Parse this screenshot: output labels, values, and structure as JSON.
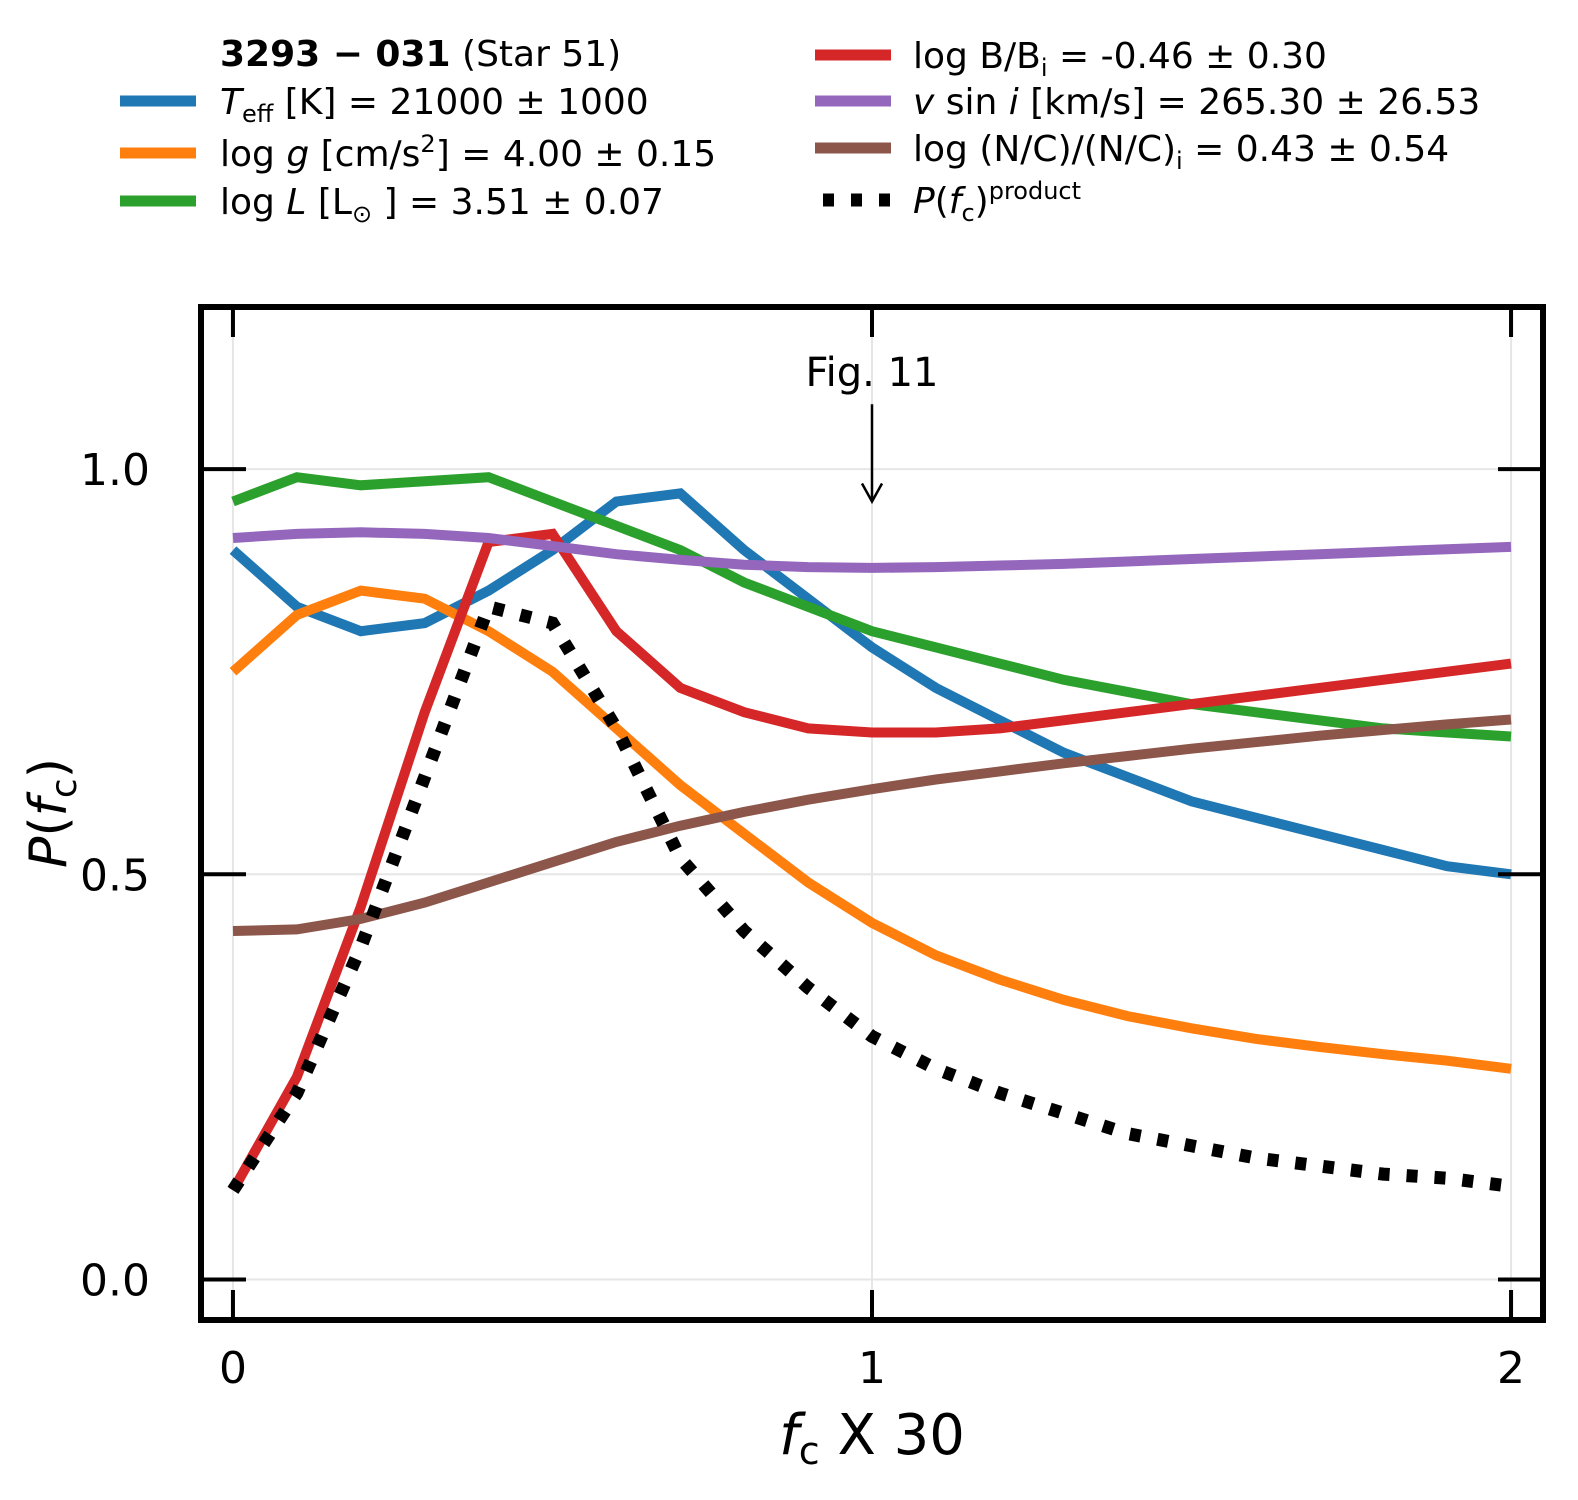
{
  "chart_data": {
    "type": "line",
    "legend": {
      "placement": "top",
      "title_bold": "3293 − 031",
      "title_rest": " (Star 51)",
      "entries": [
        {
          "id": "teff",
          "pre_it": "T",
          "sub": "eff",
          "mid": " [K] = ",
          "value": "21000 ± 1000"
        },
        {
          "id": "logg",
          "pre": "log ",
          "it": "g",
          "mid": " [cm/s",
          "sup": "2",
          "post": "] = ",
          "value": "4.00 ± 0.15"
        },
        {
          "id": "logl",
          "pre": "log ",
          "it": "L",
          "mid": " [L",
          "sub": "⊙",
          "post": " ] = ",
          "value": "3.51 ± 0.07"
        },
        {
          "id": "logb",
          "pre": "log B/B",
          "sub": "i",
          "post": " = ",
          "value": "-0.46 ± 0.30"
        },
        {
          "id": "vsini",
          "it": "v",
          "mid": " sin ",
          "it2": "i",
          "post": " [km/s] = ",
          "value": "265.30 ± 26.53"
        },
        {
          "id": "nc",
          "pre": "log (N/C)/(N/C)",
          "sub": "i",
          "post": " = ",
          "value": "0.43 ± 0.54"
        },
        {
          "id": "prod",
          "it": "P",
          "mid": "(",
          "it2": "f",
          "sub": "c",
          "post": ")",
          "sup": "product"
        }
      ]
    },
    "xlabel": {
      "italic": "f",
      "sub": "c",
      "rest": " X 30"
    },
    "ylabel": {
      "italic": "P",
      "mid": "(",
      "italic2": "f",
      "sub": "c",
      "post": ")"
    },
    "xlim": [
      -0.05,
      2.05
    ],
    "ylim": [
      -0.05,
      1.2
    ],
    "xticks": [
      {
        "v": 0,
        "label": "0"
      },
      {
        "v": 1,
        "label": "1"
      },
      {
        "v": 2,
        "label": "2"
      }
    ],
    "yticks": [
      {
        "v": 0,
        "label": "0.0"
      },
      {
        "v": 0.5,
        "label": "0.5"
      },
      {
        "v": 1,
        "label": "1.0"
      }
    ],
    "grid": true,
    "annotation": {
      "text": "Fig. 11",
      "x": 1.0,
      "text_y": 1.12,
      "arrow_top": 1.08,
      "arrow_bottom": 0.96
    },
    "x": [
      0,
      0.1,
      0.2,
      0.3,
      0.4,
      0.5,
      0.6,
      0.7,
      0.8,
      0.9,
      1.0,
      1.1,
      1.2,
      1.3,
      1.4,
      1.5,
      1.6,
      1.7,
      1.8,
      1.9,
      2.0
    ],
    "series": [
      {
        "id": "teff",
        "color": "#1f77b4",
        "dash": "",
        "values": [
          0.9,
          0.83,
          0.8,
          0.81,
          0.85,
          0.9,
          0.96,
          0.97,
          0.9,
          0.84,
          0.78,
          0.73,
          0.69,
          0.65,
          0.62,
          0.59,
          0.57,
          0.55,
          0.53,
          0.51,
          0.5
        ]
      },
      {
        "id": "logg",
        "color": "#ff7f0e",
        "dash": "",
        "values": [
          0.75,
          0.82,
          0.85,
          0.84,
          0.8,
          0.75,
          0.68,
          0.61,
          0.55,
          0.49,
          0.44,
          0.4,
          0.37,
          0.345,
          0.325,
          0.31,
          0.297,
          0.287,
          0.278,
          0.27,
          0.26
        ]
      },
      {
        "id": "logl",
        "color": "#2ca02c",
        "dash": "",
        "values": [
          0.96,
          0.99,
          0.98,
          0.985,
          0.99,
          0.96,
          0.93,
          0.9,
          0.86,
          0.83,
          0.8,
          0.78,
          0.76,
          0.74,
          0.725,
          0.71,
          0.7,
          0.69,
          0.68,
          0.675,
          0.67
        ]
      },
      {
        "id": "logb",
        "color": "#d62728",
        "dash": "",
        "values": [
          0.11,
          0.25,
          0.46,
          0.7,
          0.91,
          0.92,
          0.8,
          0.73,
          0.7,
          0.68,
          0.675,
          0.675,
          0.68,
          0.69,
          0.7,
          0.71,
          0.72,
          0.73,
          0.74,
          0.75,
          0.76
        ]
      },
      {
        "id": "vsini",
        "color": "#9467bd",
        "dash": "",
        "values": [
          0.915,
          0.92,
          0.922,
          0.92,
          0.915,
          0.905,
          0.895,
          0.888,
          0.882,
          0.879,
          0.878,
          0.879,
          0.881,
          0.883,
          0.886,
          0.889,
          0.892,
          0.895,
          0.898,
          0.901,
          0.904
        ]
      },
      {
        "id": "nc",
        "color": "#8c564b",
        "dash": "",
        "values": [
          0.43,
          0.432,
          0.445,
          0.465,
          0.49,
          0.515,
          0.54,
          0.56,
          0.577,
          0.592,
          0.605,
          0.617,
          0.627,
          0.637,
          0.646,
          0.655,
          0.663,
          0.671,
          0.678,
          0.685,
          0.691
        ]
      },
      {
        "id": "prod",
        "color": "#000000",
        "dash": "11 17",
        "values": [
          0.11,
          0.23,
          0.41,
          0.62,
          0.83,
          0.81,
          0.68,
          0.52,
          0.43,
          0.36,
          0.3,
          0.26,
          0.23,
          0.205,
          0.18,
          0.165,
          0.15,
          0.14,
          0.13,
          0.125,
          0.115
        ]
      }
    ]
  }
}
